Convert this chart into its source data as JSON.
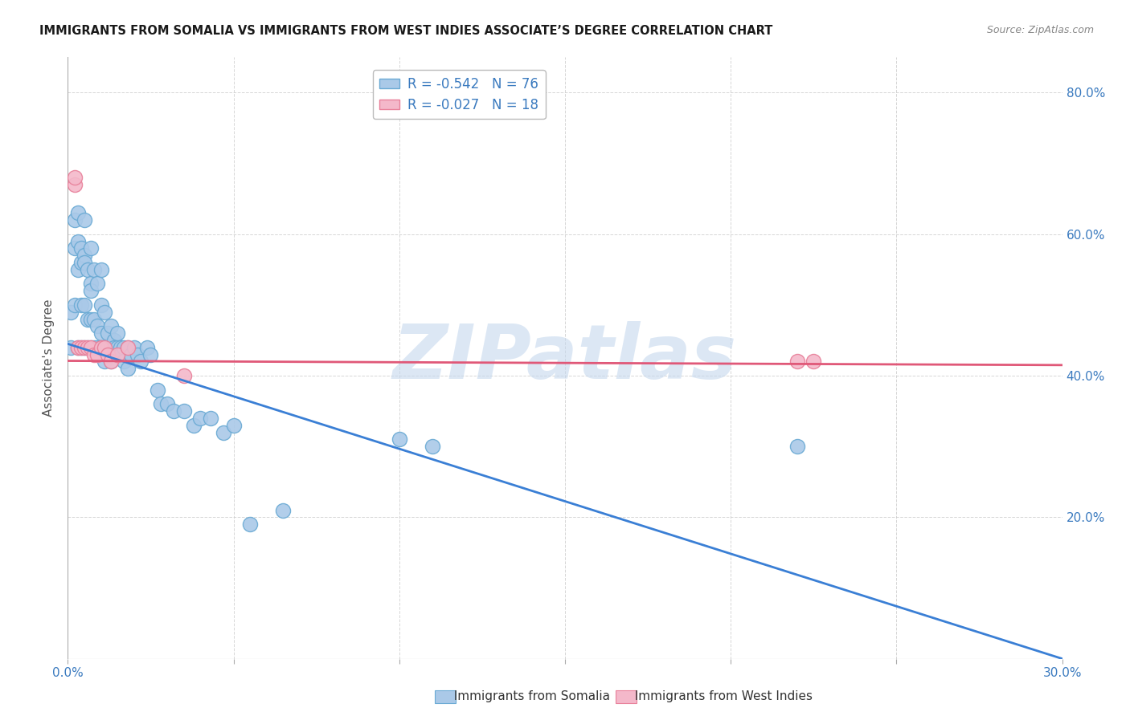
{
  "title": "IMMIGRANTS FROM SOMALIA VS IMMIGRANTS FROM WEST INDIES ASSOCIATE’S DEGREE CORRELATION CHART",
  "source": "Source: ZipAtlas.com",
  "ylabel": "Associate's Degree",
  "xlim": [
    0.0,
    0.3
  ],
  "ylim": [
    0.0,
    0.85
  ],
  "x_tick_positions": [
    0.0,
    0.05,
    0.1,
    0.15,
    0.2,
    0.25,
    0.3
  ],
  "x_tick_labels": [
    "0.0%",
    "",
    "",
    "",
    "",
    "",
    "30.0%"
  ],
  "y_tick_positions": [
    0.0,
    0.2,
    0.4,
    0.6,
    0.8
  ],
  "y_tick_labels_right": [
    "",
    "20.0%",
    "40.0%",
    "60.0%",
    "80.0%"
  ],
  "somalia_color": "#aac9e8",
  "somalia_edge": "#6aaad4",
  "west_indies_color": "#f4b8ca",
  "west_indies_edge": "#e8809a",
  "line_somalia_color": "#3a7fd5",
  "line_west_indies_color": "#e05878",
  "R_somalia": -0.542,
  "N_somalia": 76,
  "R_west_indies": -0.027,
  "N_west_indies": 18,
  "som_line_x0": 0.0,
  "som_line_y0": 0.445,
  "som_line_x1": 0.3,
  "som_line_y1": 0.0,
  "wi_line_x0": 0.0,
  "wi_line_y0": 0.421,
  "wi_line_x1": 0.3,
  "wi_line_y1": 0.415,
  "somalia_scatter_x": [
    0.001,
    0.001,
    0.002,
    0.002,
    0.002,
    0.003,
    0.003,
    0.003,
    0.003,
    0.004,
    0.004,
    0.004,
    0.004,
    0.005,
    0.005,
    0.005,
    0.005,
    0.005,
    0.006,
    0.006,
    0.006,
    0.007,
    0.007,
    0.007,
    0.007,
    0.007,
    0.008,
    0.008,
    0.008,
    0.009,
    0.009,
    0.009,
    0.01,
    0.01,
    0.01,
    0.01,
    0.011,
    0.011,
    0.011,
    0.012,
    0.012,
    0.013,
    0.013,
    0.013,
    0.014,
    0.014,
    0.015,
    0.015,
    0.015,
    0.016,
    0.016,
    0.017,
    0.017,
    0.018,
    0.018,
    0.019,
    0.02,
    0.021,
    0.022,
    0.024,
    0.025,
    0.027,
    0.028,
    0.03,
    0.032,
    0.035,
    0.038,
    0.04,
    0.043,
    0.047,
    0.05,
    0.055,
    0.065,
    0.1,
    0.11,
    0.22
  ],
  "somalia_scatter_y": [
    0.44,
    0.49,
    0.58,
    0.62,
    0.5,
    0.59,
    0.63,
    0.55,
    0.44,
    0.56,
    0.58,
    0.5,
    0.44,
    0.57,
    0.62,
    0.5,
    0.44,
    0.56,
    0.55,
    0.48,
    0.44,
    0.58,
    0.53,
    0.48,
    0.44,
    0.52,
    0.55,
    0.48,
    0.44,
    0.53,
    0.47,
    0.44,
    0.5,
    0.46,
    0.44,
    0.55,
    0.49,
    0.44,
    0.42,
    0.46,
    0.44,
    0.47,
    0.44,
    0.42,
    0.45,
    0.44,
    0.44,
    0.43,
    0.46,
    0.44,
    0.43,
    0.44,
    0.42,
    0.44,
    0.41,
    0.43,
    0.44,
    0.43,
    0.42,
    0.44,
    0.43,
    0.38,
    0.36,
    0.36,
    0.35,
    0.35,
    0.33,
    0.34,
    0.34,
    0.32,
    0.33,
    0.19,
    0.21,
    0.31,
    0.3,
    0.3
  ],
  "west_indies_scatter_x": [
    0.002,
    0.002,
    0.003,
    0.004,
    0.005,
    0.006,
    0.007,
    0.008,
    0.009,
    0.01,
    0.011,
    0.012,
    0.013,
    0.015,
    0.018,
    0.035,
    0.22,
    0.225
  ],
  "west_indies_scatter_y": [
    0.67,
    0.68,
    0.44,
    0.44,
    0.44,
    0.44,
    0.44,
    0.43,
    0.43,
    0.44,
    0.44,
    0.43,
    0.42,
    0.43,
    0.44,
    0.4,
    0.42,
    0.42
  ],
  "watermark_text": "ZIPatlas",
  "watermark_color": "#c5d8ee",
  "watermark_alpha": 0.6,
  "background_color": "#ffffff",
  "grid_color": "#cccccc",
  "legend_label_somalia": "Immigrants from Somalia",
  "legend_label_west_indies": "Immigrants from West Indies"
}
